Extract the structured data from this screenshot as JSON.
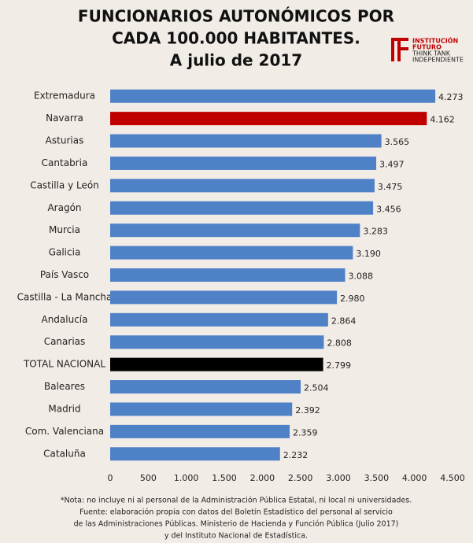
{
  "chart_data": {
    "type": "bar",
    "orientation": "horizontal",
    "title": [
      "FUNCIONARIOS AUTONÓMICOS POR",
      "CADA 100.000 HABITANTES.",
      "A julio de 2017"
    ],
    "logo": [
      "INSTITUCIÓN",
      "FUTURO",
      "THINK TANK",
      "INDEPENDIENTE"
    ],
    "categories": [
      "Extremadura",
      "Navarra",
      "Asturias",
      "Cantabria",
      "Castilla y León",
      "Aragón",
      "Murcia",
      "Galicia",
      "País Vasco",
      "Castilla - La Mancha",
      "Andalucía",
      "Canarias",
      "TOTAL NACIONAL",
      "Baleares",
      "Madrid",
      "Com. Valenciana",
      "Cataluña"
    ],
    "values": [
      4273,
      4162,
      3565,
      3497,
      3475,
      3456,
      3283,
      3190,
      3088,
      2980,
      2864,
      2808,
      2799,
      2504,
      2392,
      2359,
      2232
    ],
    "value_labels": [
      "4.273",
      "4.162",
      "3.565",
      "3.497",
      "3.475",
      "3.456",
      "3.283",
      "3.190",
      "3.088",
      "2.980",
      "2.864",
      "2.808",
      "2.799",
      "2.504",
      "2.392",
      "2.359",
      "2.232"
    ],
    "colors": [
      "#4f81c7",
      "#c00000",
      "#4f81c7",
      "#4f81c7",
      "#4f81c7",
      "#4f81c7",
      "#4f81c7",
      "#4f81c7",
      "#4f81c7",
      "#4f81c7",
      "#4f81c7",
      "#4f81c7",
      "#000000",
      "#4f81c7",
      "#4f81c7",
      "#4f81c7",
      "#4f81c7"
    ],
    "xlim": [
      0,
      4500
    ],
    "xticks": [
      0,
      500,
      {
        "value": 1000,
        "label": "1.000"
      },
      {
        "value": 1500,
        "label": "1.500"
      },
      {
        "value": 2000,
        "label": "2.000"
      },
      {
        "value": 2500,
        "label": "2.500"
      },
      {
        "value": 3000,
        "label": "3.000"
      },
      {
        "value": 3500,
        "label": "3.500"
      },
      {
        "value": 4000,
        "label": "4.000"
      },
      {
        "value": 4500,
        "label": "4.500"
      }
    ],
    "grid": false,
    "footnote": [
      "*Nota: no incluye ni al personal de la Administración Pública Estatal, ni local ni universidades.",
      "Fuente: elaboración propia con datos del Boletín Estadístico del personal al servicio",
      "de las Administraciones Públicas. Ministerio de Hacienda y Función Pública (Julio 2017)",
      "y del Instituto Nacional de Estadística."
    ]
  }
}
